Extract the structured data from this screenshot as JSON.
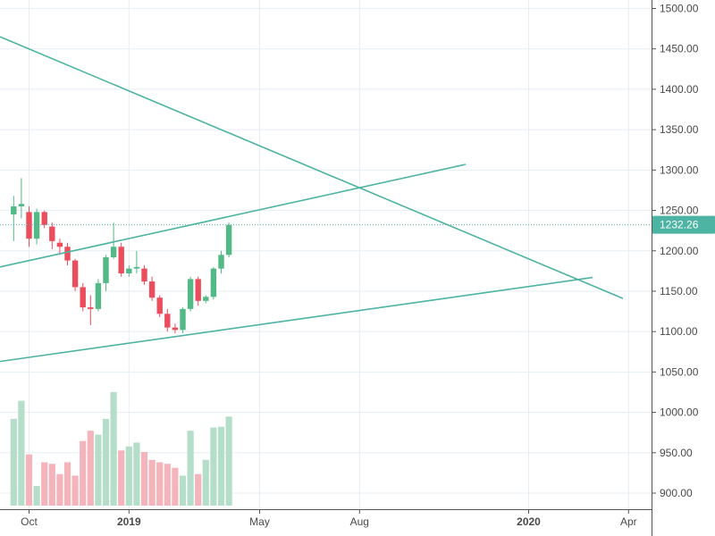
{
  "chart_data": {
    "type": "candlestick",
    "instrument_note": "",
    "y_axis": {
      "min": 880,
      "max": 1510,
      "ticks": [
        "1500.00",
        "1450.00",
        "1400.00",
        "1350.00",
        "1300.00",
        "1250.00",
        "1200.00",
        "1150.00",
        "1100.00",
        "1050.00",
        "1000.00",
        "950.00",
        "900.00"
      ],
      "tick_values": [
        1500,
        1450,
        1400,
        1350,
        1300,
        1250,
        1200,
        1150,
        1100,
        1050,
        1000,
        950,
        900
      ]
    },
    "x_axis": {
      "labels": [
        {
          "text": "Oct",
          "week": 0,
          "bold": false
        },
        {
          "text": "2019",
          "week": 13,
          "bold": true
        },
        {
          "text": "May",
          "week": 30,
          "bold": false
        },
        {
          "text": "Aug",
          "week": 43,
          "bold": false
        },
        {
          "text": "2020",
          "week": 65,
          "bold": true
        },
        {
          "text": "Apr",
          "week": 78,
          "bold": false
        }
      ]
    },
    "last_price": {
      "value": 1232.26,
      "label": "1232.26"
    },
    "colors": {
      "up": "#53b987",
      "down": "#eb4d5c",
      "up_volume": "#b4dec9",
      "down_volume": "#f3b5bb",
      "trendline": "#4db3a2",
      "grid": "#e6eef3",
      "price_tag": "#4db3a2"
    },
    "candles": [
      {
        "w": -2,
        "o": 1245,
        "h": 1268,
        "l": 1212,
        "c": 1255,
        "v": 990
      },
      {
        "w": -1,
        "o": 1255,
        "h": 1290,
        "l": 1240,
        "c": 1258,
        "v": 1013
      },
      {
        "w": 0,
        "o": 1248,
        "h": 1255,
        "l": 1205,
        "c": 1215,
        "v": 945
      },
      {
        "w": 1,
        "o": 1215,
        "h": 1252,
        "l": 1208,
        "c": 1248,
        "v": 905
      },
      {
        "w": 2,
        "o": 1248,
        "h": 1250,
        "l": 1228,
        "c": 1232,
        "v": 935
      },
      {
        "w": 3,
        "o": 1230,
        "h": 1235,
        "l": 1202,
        "c": 1212,
        "v": 933
      },
      {
        "w": 4,
        "o": 1210,
        "h": 1215,
        "l": 1195,
        "c": 1205,
        "v": 920
      },
      {
        "w": 5,
        "o": 1205,
        "h": 1210,
        "l": 1182,
        "c": 1188,
        "v": 935
      },
      {
        "w": 6,
        "o": 1188,
        "h": 1190,
        "l": 1150,
        "c": 1155,
        "v": 918
      },
      {
        "w": 7,
        "o": 1155,
        "h": 1160,
        "l": 1125,
        "c": 1130,
        "v": 962
      },
      {
        "w": 8,
        "o": 1130,
        "h": 1145,
        "l": 1108,
        "c": 1128,
        "v": 975
      },
      {
        "w": 9,
        "o": 1128,
        "h": 1165,
        "l": 1125,
        "c": 1160,
        "v": 970
      },
      {
        "w": 10,
        "o": 1160,
        "h": 1195,
        "l": 1150,
        "c": 1192,
        "v": 990
      },
      {
        "w": 11,
        "o": 1192,
        "h": 1235,
        "l": 1190,
        "c": 1205,
        "v": 1024
      },
      {
        "w": 12,
        "o": 1205,
        "h": 1210,
        "l": 1168,
        "c": 1172,
        "v": 950
      },
      {
        "w": 13,
        "o": 1172,
        "h": 1182,
        "l": 1168,
        "c": 1178,
        "v": 955
      },
      {
        "w": 14,
        "o": 1178,
        "h": 1200,
        "l": 1172,
        "c": 1180,
        "v": 960
      },
      {
        "w": 15,
        "o": 1178,
        "h": 1182,
        "l": 1158,
        "c": 1162,
        "v": 948
      },
      {
        "w": 16,
        "o": 1162,
        "h": 1168,
        "l": 1138,
        "c": 1142,
        "v": 938
      },
      {
        "w": 17,
        "o": 1142,
        "h": 1145,
        "l": 1118,
        "c": 1122,
        "v": 935
      },
      {
        "w": 18,
        "o": 1122,
        "h": 1128,
        "l": 1100,
        "c": 1105,
        "v": 933
      },
      {
        "w": 19,
        "o": 1105,
        "h": 1110,
        "l": 1098,
        "c": 1102,
        "v": 928
      },
      {
        "w": 20,
        "o": 1102,
        "h": 1130,
        "l": 1098,
        "c": 1128,
        "v": 918
      },
      {
        "w": 21,
        "o": 1128,
        "h": 1168,
        "l": 1125,
        "c": 1165,
        "v": 975
      },
      {
        "w": 22,
        "o": 1165,
        "h": 1168,
        "l": 1132,
        "c": 1138,
        "v": 920
      },
      {
        "w": 23,
        "o": 1138,
        "h": 1145,
        "l": 1135,
        "c": 1143,
        "v": 938
      },
      {
        "w": 24,
        "o": 1143,
        "h": 1180,
        "l": 1140,
        "c": 1178,
        "v": 979
      },
      {
        "w": 25,
        "o": 1178,
        "h": 1200,
        "l": 1172,
        "c": 1195,
        "v": 980
      },
      {
        "w": 26,
        "o": 1195,
        "h": 1235,
        "l": 1192,
        "c": 1232,
        "v": 993
      }
    ],
    "trendlines": [
      {
        "x1": 0,
        "y1": 1465,
        "x2": 697,
        "y2": 1141
      },
      {
        "x1": 0,
        "y1": 1180,
        "x2": 521,
        "y2": 1307
      },
      {
        "x1": 0,
        "y1": 1063,
        "x2": 663,
        "y2": 1167
      }
    ]
  }
}
